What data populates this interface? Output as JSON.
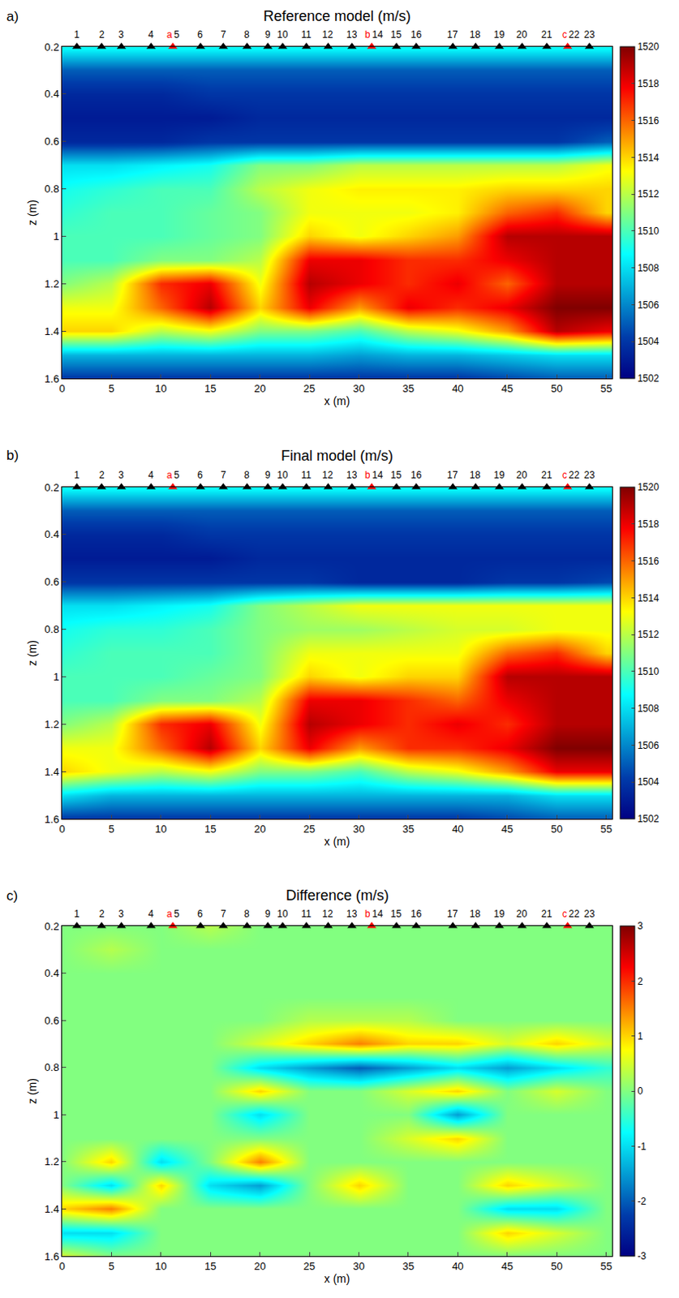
{
  "chart_data": [
    {
      "type": "heatmap",
      "panel_label": "a)",
      "title": "Reference model (m/s)",
      "x_label": "x (m)",
      "y_label": "z (m)",
      "x": [
        0,
        5,
        10,
        15,
        20,
        25,
        30,
        35,
        40,
        45,
        50,
        55
      ],
      "y": [
        0.2,
        0.3,
        0.4,
        0.5,
        0.6,
        0.7,
        0.8,
        0.9,
        1.0,
        1.1,
        1.2,
        1.3,
        1.4,
        1.5,
        1.6
      ],
      "z": [
        [
          1509,
          1509,
          1509,
          1509,
          1509,
          1509,
          1509,
          1509,
          1509,
          1509,
          1509,
          1509
        ],
        [
          1505,
          1505,
          1505,
          1505,
          1505,
          1505,
          1505,
          1505,
          1505,
          1505,
          1505,
          1505
        ],
        [
          1503.5,
          1503.5,
          1503.5,
          1504,
          1504,
          1504,
          1504,
          1504,
          1504,
          1504,
          1504,
          1504
        ],
        [
          1503,
          1503,
          1503,
          1503,
          1503.5,
          1503.5,
          1503.5,
          1503.5,
          1503.5,
          1503.5,
          1503.5,
          1503.5
        ],
        [
          1503.5,
          1503.5,
          1503.5,
          1504,
          1504,
          1504,
          1504,
          1504,
          1504,
          1504,
          1504,
          1505
        ],
        [
          1508,
          1508,
          1508.5,
          1509,
          1511,
          1511,
          1512,
          1512,
          1512,
          1512,
          1512,
          1513
        ],
        [
          1509,
          1509.5,
          1510,
          1510,
          1512,
          1513,
          1513.5,
          1513.5,
          1513.5,
          1514,
          1514,
          1514
        ],
        [
          1509.5,
          1510,
          1510,
          1510.5,
          1511,
          1513,
          1513,
          1513,
          1513.5,
          1516,
          1517,
          1514
        ],
        [
          1510,
          1510,
          1510,
          1510.5,
          1511,
          1514,
          1513,
          1514,
          1515,
          1519,
          1519,
          1519
        ],
        [
          1510,
          1510,
          1511,
          1511,
          1512,
          1518,
          1518,
          1517,
          1517,
          1518,
          1519,
          1519
        ],
        [
          1511,
          1512,
          1517,
          1518,
          1513,
          1519,
          1518,
          1517,
          1518,
          1516,
          1519,
          1519
        ],
        [
          1513,
          1513,
          1516,
          1519,
          1514,
          1518,
          1515,
          1518,
          1517,
          1518,
          1520,
          1520
        ],
        [
          1514,
          1514,
          1512,
          1513,
          1511,
          1511,
          1510,
          1512,
          1513,
          1515,
          1519,
          1518
        ],
        [
          1507,
          1507,
          1507,
          1507,
          1507,
          1507,
          1506.5,
          1507,
          1507,
          1507.5,
          1508,
          1508
        ],
        [
          1504,
          1504,
          1504,
          1504,
          1504,
          1504,
          1504,
          1504,
          1504,
          1504.5,
          1505,
          1505
        ]
      ],
      "xlim": [
        0,
        55.6
      ],
      "ylim": [
        1.6,
        0.2
      ],
      "xticks": [
        0,
        5,
        10,
        15,
        20,
        25,
        30,
        35,
        40,
        45,
        50,
        55
      ],
      "yticks": [
        0.2,
        0.4,
        0.6,
        0.8,
        1,
        1.2,
        1.4,
        1.6
      ],
      "colorbar": {
        "range": [
          1502,
          1520
        ],
        "ticks": [
          1502,
          1504,
          1506,
          1508,
          1510,
          1512,
          1514,
          1516,
          1518,
          1520
        ]
      },
      "receivers": [
        {
          "x": 1.5,
          "label": "1",
          "color": "black"
        },
        {
          "x": 4,
          "label": "2",
          "color": "black"
        },
        {
          "x": 6,
          "label": "3",
          "color": "black"
        },
        {
          "x": 9,
          "label": "4",
          "color": "black"
        },
        {
          "x": 11.2,
          "label": "5",
          "tag": "a",
          "color": "red"
        },
        {
          "x": 14,
          "label": "6",
          "color": "black"
        },
        {
          "x": 16.3,
          "label": "7",
          "color": "black"
        },
        {
          "x": 18.7,
          "label": "8",
          "color": "black"
        },
        {
          "x": 20.8,
          "label": "9",
          "color": "black"
        },
        {
          "x": 22.3,
          "label": "10",
          "color": "black"
        },
        {
          "x": 24.7,
          "label": "11",
          "color": "black"
        },
        {
          "x": 26.9,
          "label": "12",
          "color": "black"
        },
        {
          "x": 29.3,
          "label": "13",
          "color": "black"
        },
        {
          "x": 31.3,
          "label": "14",
          "tag": "b",
          "color": "red"
        },
        {
          "x": 33.8,
          "label": "15",
          "color": "black"
        },
        {
          "x": 35.8,
          "label": "16",
          "color": "black"
        },
        {
          "x": 39.5,
          "label": "17",
          "color": "black"
        },
        {
          "x": 41.8,
          "label": "18",
          "color": "black"
        },
        {
          "x": 44.2,
          "label": "19",
          "color": "black"
        },
        {
          "x": 46.5,
          "label": "20",
          "color": "black"
        },
        {
          "x": 49,
          "label": "21",
          "color": "black"
        },
        {
          "x": 51.1,
          "label": "22",
          "tag": "c",
          "color": "red"
        },
        {
          "x": 53.3,
          "label": "23",
          "color": "black"
        }
      ]
    },
    {
      "type": "heatmap",
      "panel_label": "b)",
      "title": "Final model (m/s)",
      "x_label": "x (m)",
      "y_label": "z (m)",
      "x": [
        0,
        5,
        10,
        15,
        20,
        25,
        30,
        35,
        40,
        45,
        50,
        55
      ],
      "y": [
        0.2,
        0.3,
        0.4,
        0.5,
        0.6,
        0.7,
        0.8,
        0.9,
        1.0,
        1.1,
        1.2,
        1.3,
        1.4,
        1.5,
        1.6
      ],
      "z": [
        [
          1509,
          1509,
          1509,
          1509,
          1509,
          1509,
          1509,
          1509,
          1509,
          1509,
          1509,
          1509
        ],
        [
          1505,
          1505,
          1505,
          1505,
          1505,
          1505,
          1505,
          1505,
          1505,
          1505,
          1505,
          1505
        ],
        [
          1503.5,
          1503.5,
          1503.5,
          1504,
          1504,
          1504,
          1504,
          1504,
          1504,
          1504,
          1504,
          1504
        ],
        [
          1503,
          1503,
          1503,
          1503,
          1503.5,
          1503.5,
          1503.5,
          1503.5,
          1503.5,
          1503.5,
          1503.5,
          1503.5
        ],
        [
          1504,
          1504,
          1504,
          1504,
          1504,
          1504,
          1503.5,
          1503.5,
          1503.5,
          1504,
          1504,
          1504.5
        ],
        [
          1508,
          1508,
          1508.5,
          1509,
          1511,
          1512,
          1513,
          1513,
          1513,
          1513,
          1513,
          1513
        ],
        [
          1509,
          1509.5,
          1509.5,
          1510,
          1511,
          1511.5,
          1511.5,
          1512,
          1512.5,
          1512.5,
          1513,
          1513
        ],
        [
          1509.5,
          1510,
          1510,
          1510,
          1511,
          1513,
          1513,
          1513,
          1513,
          1516,
          1517,
          1514
        ],
        [
          1510,
          1510,
          1510,
          1510.5,
          1511,
          1514,
          1513,
          1514,
          1514,
          1519,
          1519,
          1519
        ],
        [
          1510,
          1510,
          1511,
          1511,
          1512,
          1518,
          1518,
          1517,
          1516,
          1518,
          1519,
          1519
        ],
        [
          1511,
          1512,
          1517,
          1518,
          1513,
          1519,
          1518,
          1517,
          1518,
          1517,
          1519,
          1519
        ],
        [
          1513,
          1513,
          1516,
          1519,
          1514,
          1518,
          1515,
          1517,
          1517,
          1518,
          1520,
          1520
        ],
        [
          1514,
          1513,
          1512,
          1513,
          1511,
          1511,
          1510,
          1512,
          1513,
          1515,
          1518,
          1518
        ],
        [
          1508,
          1507,
          1507,
          1507,
          1507,
          1507,
          1507,
          1507,
          1507,
          1507,
          1508,
          1508
        ],
        [
          1504,
          1504,
          1504,
          1504,
          1504,
          1504,
          1504,
          1504,
          1504,
          1504.5,
          1505,
          1505
        ]
      ],
      "xlim": [
        0,
        55.6
      ],
      "ylim": [
        1.6,
        0.2
      ],
      "xticks": [
        0,
        5,
        10,
        15,
        20,
        25,
        30,
        35,
        40,
        45,
        50,
        55
      ],
      "yticks": [
        0.2,
        0.4,
        0.6,
        0.8,
        1,
        1.2,
        1.4,
        1.6
      ],
      "colorbar": {
        "range": [
          1502,
          1520
        ],
        "ticks": [
          1502,
          1504,
          1506,
          1508,
          1510,
          1512,
          1514,
          1516,
          1518,
          1520
        ]
      },
      "receivers": [
        {
          "x": 1.5,
          "label": "1",
          "color": "black"
        },
        {
          "x": 4,
          "label": "2",
          "color": "black"
        },
        {
          "x": 6,
          "label": "3",
          "color": "black"
        },
        {
          "x": 9,
          "label": "4",
          "color": "black"
        },
        {
          "x": 11.2,
          "label": "5",
          "tag": "a",
          "color": "red"
        },
        {
          "x": 14,
          "label": "6",
          "color": "black"
        },
        {
          "x": 16.3,
          "label": "7",
          "color": "black"
        },
        {
          "x": 18.7,
          "label": "8",
          "color": "black"
        },
        {
          "x": 20.8,
          "label": "9",
          "color": "black"
        },
        {
          "x": 22.3,
          "label": "10",
          "color": "black"
        },
        {
          "x": 24.7,
          "label": "11",
          "color": "black"
        },
        {
          "x": 26.9,
          "label": "12",
          "color": "black"
        },
        {
          "x": 29.3,
          "label": "13",
          "color": "black"
        },
        {
          "x": 31.3,
          "label": "14",
          "tag": "b",
          "color": "red"
        },
        {
          "x": 33.8,
          "label": "15",
          "color": "black"
        },
        {
          "x": 35.8,
          "label": "16",
          "color": "black"
        },
        {
          "x": 39.5,
          "label": "17",
          "color": "black"
        },
        {
          "x": 41.8,
          "label": "18",
          "color": "black"
        },
        {
          "x": 44.2,
          "label": "19",
          "color": "black"
        },
        {
          "x": 46.5,
          "label": "20",
          "color": "black"
        },
        {
          "x": 49,
          "label": "21",
          "color": "black"
        },
        {
          "x": 51.1,
          "label": "22",
          "tag": "c",
          "color": "red"
        },
        {
          "x": 53.3,
          "label": "23",
          "color": "black"
        }
      ]
    },
    {
      "type": "heatmap",
      "panel_label": "c)",
      "title": "Difference (m/s)",
      "x_label": "x (m)",
      "y_label": "z (m)",
      "x": [
        0,
        5,
        10,
        15,
        20,
        25,
        30,
        35,
        40,
        45,
        50,
        55
      ],
      "y": [
        0.2,
        0.3,
        0.4,
        0.5,
        0.6,
        0.7,
        0.8,
        0.9,
        1.0,
        1.1,
        1.2,
        1.3,
        1.4,
        1.5,
        1.6
      ],
      "z": [
        [
          0,
          0,
          0,
          0.3,
          0,
          0,
          0,
          0,
          0,
          0,
          0,
          0
        ],
        [
          0,
          0.3,
          0,
          0,
          0,
          0,
          0,
          0,
          0,
          0,
          0,
          0
        ],
        [
          0,
          0,
          0,
          0,
          0,
          0,
          0,
          0,
          0,
          0,
          0,
          0
        ],
        [
          0,
          0,
          0,
          0,
          0,
          0,
          0,
          0,
          0,
          0,
          0,
          0
        ],
        [
          0,
          0,
          0,
          0,
          0,
          0.3,
          0.3,
          0.3,
          0,
          0,
          0,
          0
        ],
        [
          0,
          0,
          0,
          0,
          0.5,
          1,
          1.5,
          1,
          1,
          0.5,
          1,
          0.5
        ],
        [
          0,
          0,
          0,
          0,
          -1,
          -1.5,
          -2,
          -1.5,
          -1,
          -1.5,
          -1,
          -0.5
        ],
        [
          0,
          0,
          0,
          0,
          1,
          0,
          0,
          0.5,
          1,
          0,
          0.5,
          0
        ],
        [
          0,
          0,
          0,
          0,
          -1,
          0,
          0,
          0,
          -1.5,
          0,
          0,
          0
        ],
        [
          0,
          0,
          0,
          0,
          0,
          0,
          0,
          0.5,
          1,
          0,
          0,
          0
        ],
        [
          0,
          1,
          -1,
          0,
          1.5,
          0,
          0,
          0,
          0,
          0,
          0,
          0
        ],
        [
          0,
          -1,
          1,
          -1,
          -1.5,
          0,
          1,
          0,
          0,
          1,
          0.5,
          0
        ],
        [
          1,
          1.5,
          0,
          0,
          0,
          0,
          0,
          0,
          0,
          -1,
          -1,
          0
        ],
        [
          -1,
          -1,
          0,
          0,
          0,
          0,
          0,
          0,
          0,
          1,
          0.5,
          0
        ],
        [
          0.5,
          0,
          0,
          0,
          0,
          0,
          0,
          0,
          0,
          0,
          0,
          0
        ]
      ],
      "xlim": [
        0,
        55.6
      ],
      "ylim": [
        1.6,
        0.2
      ],
      "xticks": [
        0,
        5,
        10,
        15,
        20,
        25,
        30,
        35,
        40,
        45,
        50,
        55
      ],
      "yticks": [
        0.2,
        0.4,
        0.6,
        0.8,
        1,
        1.2,
        1.4,
        1.6
      ],
      "colorbar": {
        "range": [
          -3,
          3
        ],
        "ticks": [
          -3,
          -2,
          -1,
          0,
          1,
          2,
          3
        ]
      },
      "receivers": [
        {
          "x": 1.5,
          "label": "1",
          "color": "black"
        },
        {
          "x": 4,
          "label": "2",
          "color": "black"
        },
        {
          "x": 6,
          "label": "3",
          "color": "black"
        },
        {
          "x": 9,
          "label": "4",
          "color": "black"
        },
        {
          "x": 11.2,
          "label": "5",
          "tag": "a",
          "color": "red"
        },
        {
          "x": 14,
          "label": "6",
          "color": "black"
        },
        {
          "x": 16.3,
          "label": "7",
          "color": "black"
        },
        {
          "x": 18.7,
          "label": "8",
          "color": "black"
        },
        {
          "x": 20.8,
          "label": "9",
          "color": "black"
        },
        {
          "x": 22.3,
          "label": "10",
          "color": "black"
        },
        {
          "x": 24.7,
          "label": "11",
          "color": "black"
        },
        {
          "x": 26.9,
          "label": "12",
          "color": "black"
        },
        {
          "x": 29.3,
          "label": "13",
          "color": "black"
        },
        {
          "x": 31.3,
          "label": "14",
          "tag": "b",
          "color": "red"
        },
        {
          "x": 33.8,
          "label": "15",
          "color": "black"
        },
        {
          "x": 35.8,
          "label": "16",
          "color": "black"
        },
        {
          "x": 39.5,
          "label": "17",
          "color": "black"
        },
        {
          "x": 41.8,
          "label": "18",
          "color": "black"
        },
        {
          "x": 44.2,
          "label": "19",
          "color": "black"
        },
        {
          "x": 46.5,
          "label": "20",
          "color": "black"
        },
        {
          "x": 49,
          "label": "21",
          "color": "black"
        },
        {
          "x": 51.1,
          "label": "22",
          "tag": "c",
          "color": "red"
        },
        {
          "x": 53.3,
          "label": "23",
          "color": "black"
        }
      ]
    }
  ]
}
